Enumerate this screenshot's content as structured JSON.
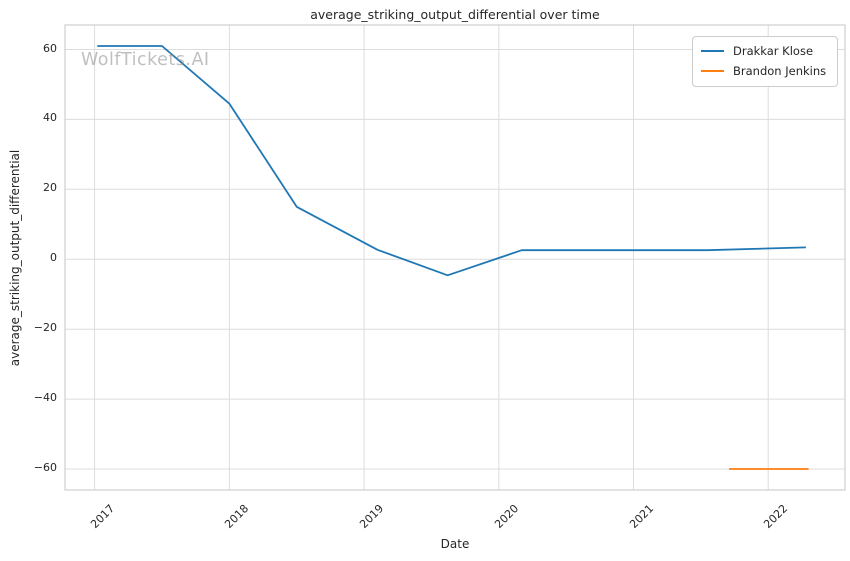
{
  "chart_data": {
    "type": "line",
    "title": "average_striking_output_differential over time",
    "xlabel": "Date",
    "ylabel": "average_striking_output_differential",
    "watermark": "WolfTickets.AI",
    "grid": true,
    "legend_position": "upper right",
    "xlim": [
      2016.78,
      2022.57
    ],
    "ylim": [
      -66,
      67
    ],
    "xticks": [
      {
        "v": 2017,
        "label": "2017"
      },
      {
        "v": 2018,
        "label": "2018"
      },
      {
        "v": 2019,
        "label": "2019"
      },
      {
        "v": 2020,
        "label": "2020"
      },
      {
        "v": 2021,
        "label": "2021"
      },
      {
        "v": 2022,
        "label": "2022"
      }
    ],
    "yticks": [
      {
        "v": -60,
        "label": "−60"
      },
      {
        "v": -40,
        "label": "−40"
      },
      {
        "v": -20,
        "label": "−20"
      },
      {
        "v": 0,
        "label": "0"
      },
      {
        "v": 20,
        "label": "20"
      },
      {
        "v": 40,
        "label": "40"
      },
      {
        "v": 60,
        "label": "60"
      }
    ],
    "series": [
      {
        "name": "Drakkar Klose",
        "color": "#1f77b4",
        "x": [
          2017.02,
          2017.5,
          2018.0,
          2018.5,
          2019.1,
          2019.62,
          2020.17,
          2021.55,
          2022.28
        ],
        "y": [
          61,
          61,
          44.5,
          15,
          2.7,
          -4.6,
          2.6,
          2.6,
          3.4
        ]
      },
      {
        "name": "Brandon Jenkins",
        "color": "#ff7f0e",
        "x": [
          2021.71,
          2022.3
        ],
        "y": [
          -60,
          -60
        ]
      }
    ]
  }
}
